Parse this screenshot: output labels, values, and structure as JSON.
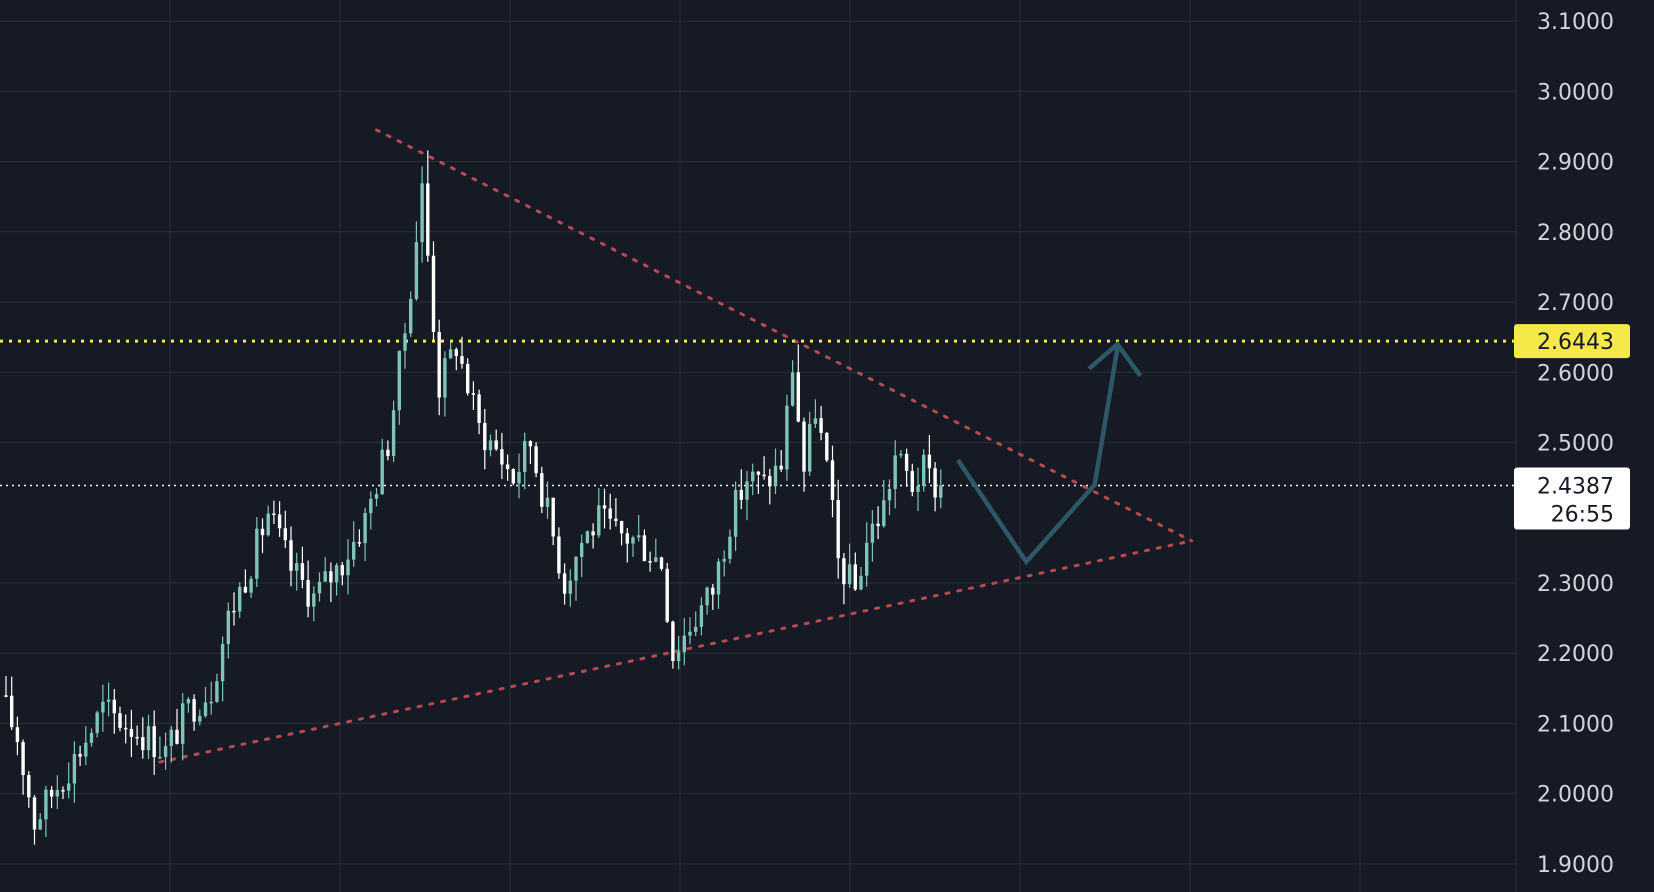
{
  "colors": {
    "background": "#161a25",
    "grid": "#2a2e39",
    "candle_up": "#7ec4b8",
    "candle_down": "#ffffff",
    "trendline": "#b84a4e",
    "level_line": "#f5e94a",
    "projection": "#2d5868",
    "price_tag_text": "#161a25"
  },
  "price_axis": {
    "ticks": [
      "1.9000",
      "2.0000",
      "2.1000",
      "2.2000",
      "2.3000",
      "2.5000",
      "2.6000",
      "2.7000",
      "2.8000",
      "2.9000",
      "3.0000",
      "3.1000"
    ]
  },
  "level_line": {
    "price_label": "2.6443"
  },
  "current_price": {
    "price_label": "2.4387",
    "countdown": "26:55"
  },
  "chart_data": {
    "type": "candlestick",
    "title": "",
    "xlabel": "",
    "ylabel": "",
    "ylim": [
      1.86,
      3.13
    ],
    "candle_count": 165,
    "grid": true,
    "horizontal_levels": [
      {
        "price": 2.6443,
        "style": "dotted",
        "color": "#f5e94a"
      },
      {
        "price": 2.4387,
        "style": "dotted",
        "color": "#ffffff"
      }
    ],
    "trendlines": [
      {
        "from": {
          "candle": 65,
          "price": 2.945
        },
        "to": {
          "candle": 208,
          "price": 2.36
        },
        "style": "dotted"
      },
      {
        "from": {
          "candle": 27,
          "price": 2.045
        },
        "to": {
          "candle": 208,
          "price": 2.36
        },
        "style": "dotted"
      }
    ],
    "projection_path": [
      {
        "candle": 167,
        "price": 2.475
      },
      {
        "candle": 179,
        "price": 2.33
      },
      {
        "candle": 191,
        "price": 2.44
      },
      {
        "candle": 195,
        "price": 2.635
      }
    ],
    "projection_arrowhead": [
      {
        "candle": 190,
        "price": 2.605
      },
      {
        "candle": 195,
        "price": 2.64
      },
      {
        "candle": 199,
        "price": 2.595
      }
    ],
    "path_keypoints": [
      [
        0,
        2.14
      ],
      [
        3,
        2.08
      ],
      [
        6,
        1.96
      ],
      [
        9,
        2.0
      ],
      [
        13,
        2.05
      ],
      [
        18,
        2.12
      ],
      [
        22,
        2.1
      ],
      [
        26,
        2.08
      ],
      [
        29,
        2.06
      ],
      [
        33,
        2.12
      ],
      [
        37,
        2.15
      ],
      [
        40,
        2.25
      ],
      [
        44,
        2.33
      ],
      [
        47,
        2.4
      ],
      [
        51,
        2.32
      ],
      [
        55,
        2.28
      ],
      [
        60,
        2.33
      ],
      [
        64,
        2.39
      ],
      [
        68,
        2.5
      ],
      [
        71,
        2.66
      ],
      [
        74,
        2.86
      ],
      [
        77,
        2.58
      ],
      [
        80,
        2.64
      ],
      [
        84,
        2.52
      ],
      [
        87,
        2.49
      ],
      [
        90,
        2.45
      ],
      [
        93,
        2.5
      ],
      [
        96,
        2.4
      ],
      [
        99,
        2.3
      ],
      [
        102,
        2.36
      ],
      [
        105,
        2.39
      ],
      [
        108,
        2.37
      ],
      [
        112,
        2.36
      ],
      [
        116,
        2.33
      ],
      [
        118,
        2.2
      ],
      [
        121,
        2.24
      ],
      [
        125,
        2.29
      ],
      [
        128,
        2.39
      ],
      [
        131,
        2.45
      ],
      [
        134,
        2.44
      ],
      [
        137,
        2.47
      ],
      [
        139,
        2.61
      ],
      [
        141,
        2.46
      ],
      [
        143,
        2.55
      ],
      [
        145,
        2.46
      ],
      [
        147,
        2.33
      ],
      [
        150,
        2.29
      ],
      [
        152,
        2.36
      ],
      [
        155,
        2.41
      ],
      [
        157,
        2.48
      ],
      [
        160,
        2.44
      ],
      [
        162,
        2.46
      ],
      [
        164,
        2.4387
      ]
    ]
  }
}
